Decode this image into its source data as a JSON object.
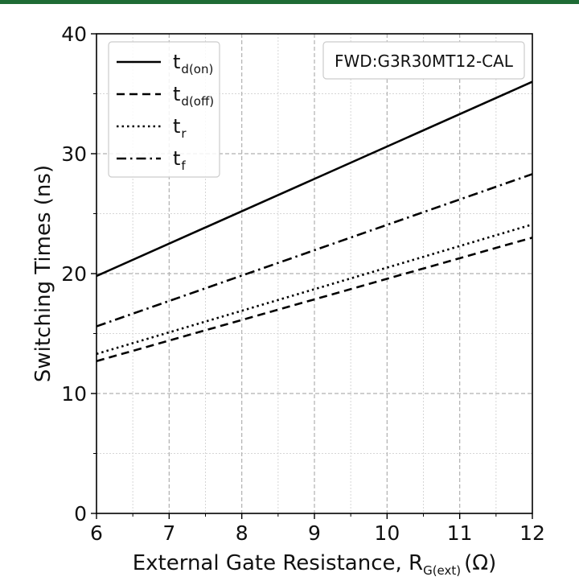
{
  "chart_data": {
    "type": "line",
    "title": "",
    "xlabel": "External Gate Resistance, R",
    "xlabel_sub": "G(ext)",
    "xlabel_unit": "(Ω)",
    "ylabel": "Switching Times (ns)",
    "xlim": [
      6,
      12
    ],
    "ylim": [
      0,
      40
    ],
    "x_ticks": [
      6,
      7,
      8,
      9,
      10,
      11,
      12
    ],
    "y_ticks": [
      0,
      10,
      20,
      30,
      40
    ],
    "grid": true,
    "legend_position": "top-left",
    "annotation": "FWD:G3R30MT12-CAL",
    "series": [
      {
        "name": "t",
        "name_sub": "d(on)",
        "dash": "solid",
        "x": [
          6,
          12
        ],
        "values": [
          19.8,
          36.0
        ]
      },
      {
        "name": "t",
        "name_sub": "d(off)",
        "dash": "dashed",
        "x": [
          6,
          12
        ],
        "values": [
          12.7,
          23.0
        ]
      },
      {
        "name": "t",
        "name_sub": "r",
        "dash": "dotted",
        "x": [
          6,
          12
        ],
        "values": [
          13.3,
          24.1
        ]
      },
      {
        "name": "t",
        "name_sub": "f",
        "dash": "dashdot",
        "x": [
          6,
          12
        ],
        "values": [
          15.6,
          28.3
        ]
      }
    ],
    "colors": {
      "lines": "#000000",
      "grid_major": "#b0b0b0",
      "grid_minor": "#d6d6d6",
      "frame_top": "#1e6b35"
    }
  }
}
